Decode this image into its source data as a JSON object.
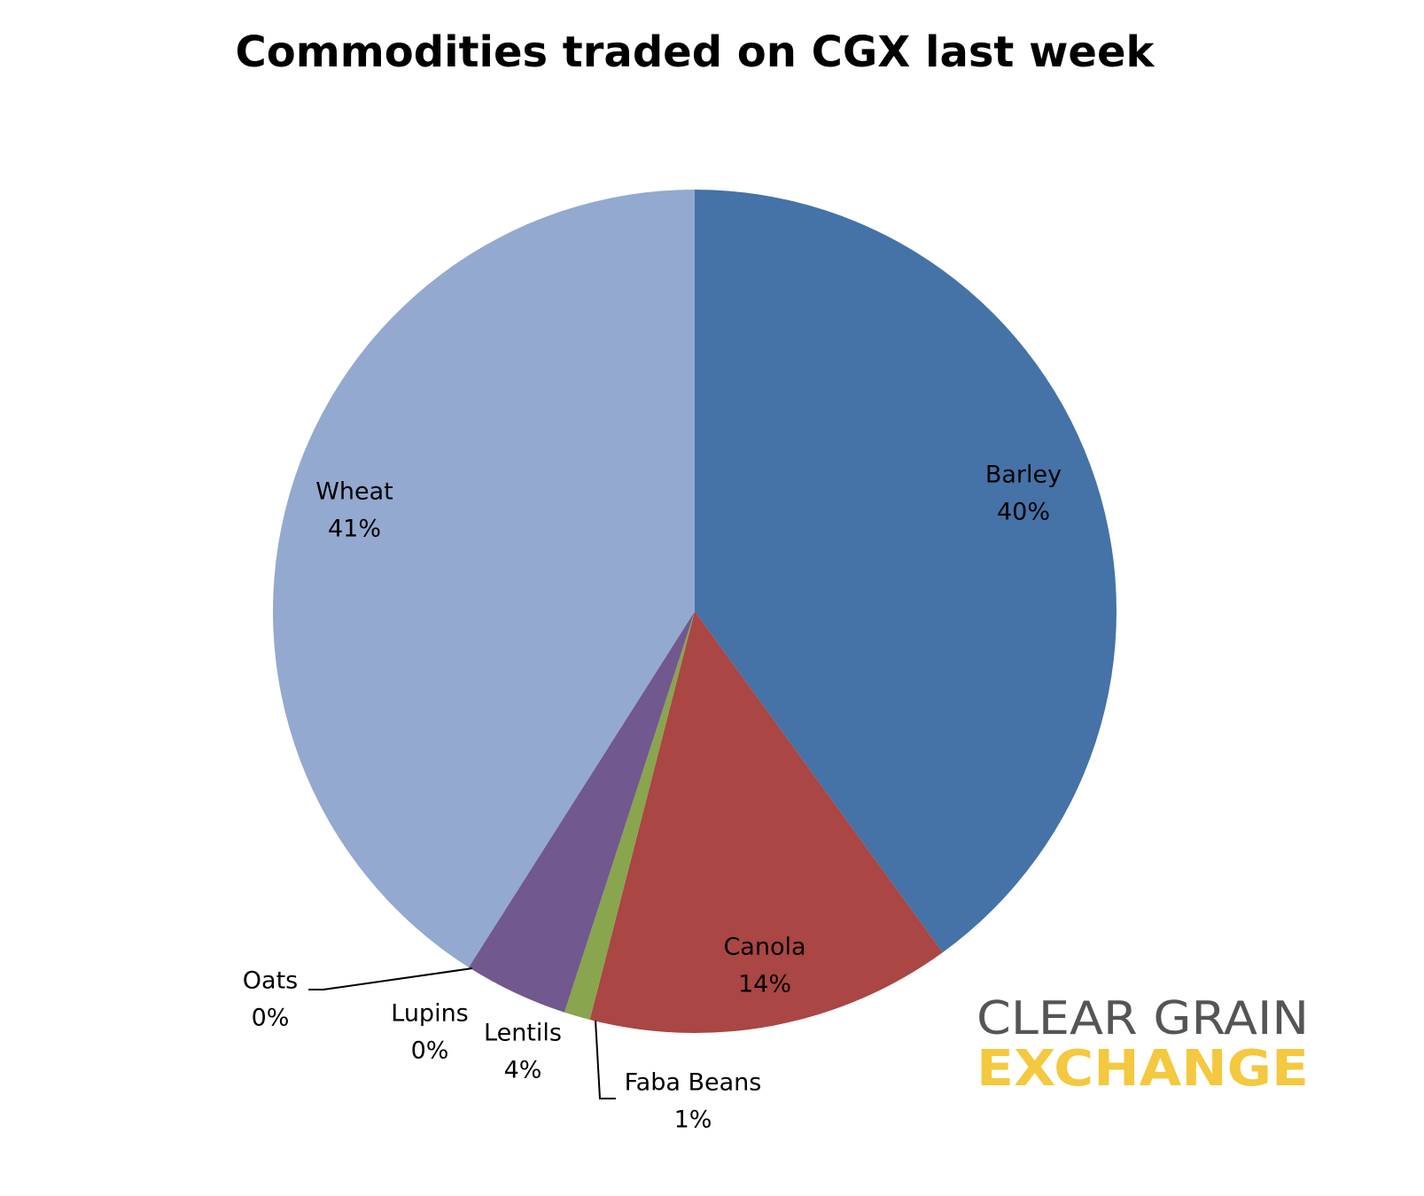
{
  "chart_data": {
    "type": "pie",
    "title": "Commodities traded on CGX last week",
    "categories": [
      "Barley",
      "Canola",
      "Faba Beans",
      "Lentils",
      "Lupins",
      "Oats",
      "Wheat"
    ],
    "values": [
      40,
      14,
      1,
      4,
      0,
      0,
      41
    ],
    "value_labels": [
      "40%",
      "14%",
      "1%",
      "4%",
      "0%",
      "0%",
      "41%"
    ],
    "colors": [
      "#4572a7",
      "#aa4643",
      "#89a54e",
      "#71588f",
      "#4198af",
      "#db843d",
      "#93a9cf"
    ]
  },
  "logo": {
    "line1": "CLEAR GRAIN",
    "line2": "EXCHANGE"
  }
}
